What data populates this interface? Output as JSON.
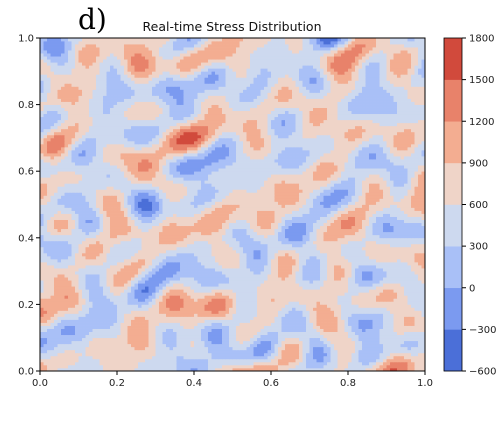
{
  "panel_label": "d)",
  "chart_data": {
    "type": "heatmap",
    "title": "Real-time Stress Distribution",
    "xlabel": "",
    "ylabel": "",
    "xlim": [
      0.0,
      1.0
    ],
    "ylim": [
      0.0,
      1.0
    ],
    "x_ticks": [
      "0.0",
      "0.2",
      "0.4",
      "0.6",
      "0.8",
      "1.0"
    ],
    "y_ticks": [
      "0.0",
      "0.2",
      "0.4",
      "0.6",
      "0.8",
      "1.0"
    ],
    "grid": false,
    "colorbar": {
      "levels": [
        -600,
        -300,
        0,
        300,
        600,
        900,
        1200,
        1500,
        1800
      ],
      "tick_labels": [
        "−600",
        "−300",
        "0",
        "300",
        "600",
        "900",
        "1200",
        "1500",
        "1800"
      ],
      "colors": [
        "#4b6fd8",
        "#7b9af0",
        "#a9c0f7",
        "#cdd9ef",
        "#efd4c8",
        "#f3ad91",
        "#e8826a",
        "#d14a3c"
      ]
    },
    "field": {
      "description_of_data": "random fine-grained stress field; mostly 300–900, with patches down to about -300 and up to about 1500",
      "grid_resolution": 110,
      "value_range": [
        -300,
        1500
      ]
    }
  }
}
